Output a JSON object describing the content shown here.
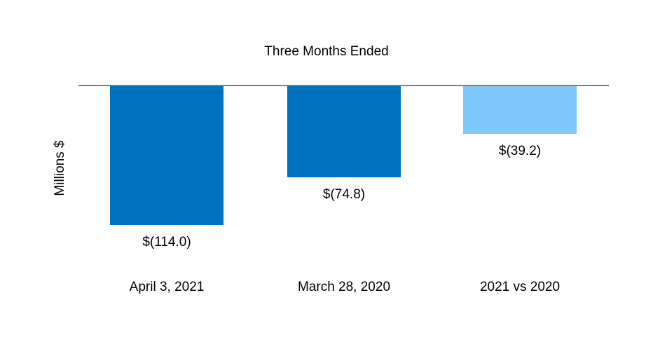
{
  "chart_data": {
    "type": "bar",
    "title": "Three Months Ended",
    "ylabel": "Millions $",
    "xlabel": "",
    "categories": [
      "April 3, 2021",
      "March 28, 2020",
      "2021 vs 2020"
    ],
    "values": [
      -114.0,
      -74.8,
      -39.2
    ],
    "data_labels": [
      "$(114.0)",
      "$(74.8)",
      "$(39.2)"
    ],
    "bar_colors": [
      "#0070C0",
      "#0070C0",
      "#7EC8FB"
    ],
    "baseline_color": "#7F7F7F",
    "text_color": "#000000",
    "background_color": "#FFFFFF",
    "ylim": [
      -120,
      0
    ],
    "grid": false,
    "legend": false,
    "orientation": "vertical-negative"
  }
}
